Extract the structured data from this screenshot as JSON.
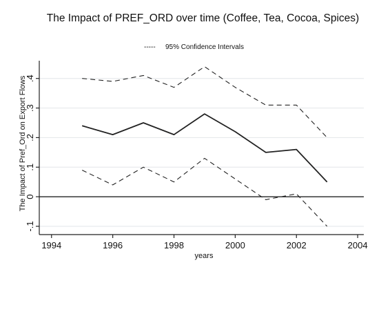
{
  "chart_data": {
    "type": "line",
    "title": "The Impact of PREF_ORD over time (Coffee, Tea, Cocoa, Spices)",
    "xlabel": "years",
    "ylabel": "The Impact of Pref_Ord on Export Flows",
    "xlim": [
      1993.6,
      2004.2
    ],
    "ylim": [
      -0.1,
      0.46
    ],
    "x_ticks": [
      1994,
      1996,
      1998,
      2000,
      2002,
      2004
    ],
    "y_ticks": [
      -0.1,
      0,
      0.1,
      0.2,
      0.3,
      0.4
    ],
    "y_tick_labels": [
      "-.1",
      "0",
      ".1",
      ".2",
      ".3",
      ".4"
    ],
    "grid": "horizontal",
    "reference_line_y": 0,
    "legend": {
      "placement": "top-center",
      "entries": [
        "95% Confidence Intervals"
      ],
      "marker": "-----"
    },
    "x": [
      1995,
      1996,
      1997,
      1998,
      1999,
      2000,
      2001,
      2002,
      2003
    ],
    "series": [
      {
        "values": [
          0.24,
          0.21,
          0.25,
          0.21,
          0.28,
          0.22,
          0.15,
          0.16,
          0.05
        ],
        "style": "solid"
      },
      {
        "values": [
          0.4,
          0.39,
          0.41,
          0.37,
          0.44,
          0.37,
          0.31,
          0.31,
          0.2
        ],
        "style": "dashed"
      },
      {
        "values": [
          0.09,
          0.04,
          0.1,
          0.05,
          0.13,
          0.06,
          -0.01,
          0.01,
          -0.1
        ],
        "style": "dashed"
      }
    ]
  }
}
